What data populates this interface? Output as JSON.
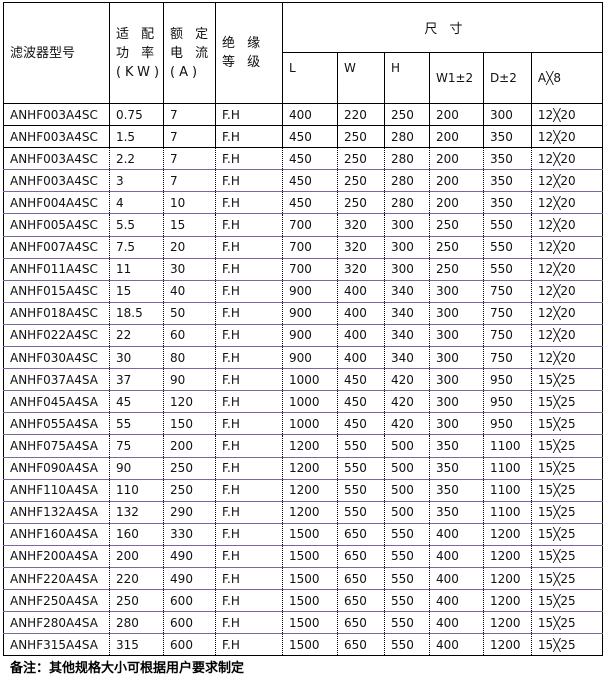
{
  "headers": {
    "model": "滤波器型号",
    "power": "适 配 功 率 (KW)",
    "current": "额 定 电 流 (A)",
    "insulation": "绝 缘 等 级",
    "dims": "尺 寸",
    "L": "L",
    "W": "W",
    "H": "H",
    "W1": "W1±2",
    "D": "D±2",
    "A": "A╳8"
  },
  "rows": [
    [
      "ANHF003A4SC",
      "0.75",
      "7",
      "F.H",
      "400",
      "220",
      "250",
      "200",
      "300",
      "12╳20"
    ],
    [
      "ANHF003A4SC",
      "1.5",
      "7",
      "F.H",
      "450",
      "250",
      "280",
      "200",
      "350",
      "12╳20"
    ],
    [
      "ANHF003A4SC",
      "2.2",
      "7",
      "F.H",
      "450",
      "250",
      "280",
      "200",
      "350",
      "12╳20"
    ],
    [
      "ANHF003A4SC",
      "3",
      "7",
      "F.H",
      "450",
      "250",
      "280",
      "200",
      "350",
      "12╳20"
    ],
    [
      "ANHF004A4SC",
      "4",
      "10",
      "F.H",
      "450",
      "250",
      "280",
      "200",
      "350",
      "12╳20"
    ],
    [
      "ANHF005A4SC",
      "5.5",
      "15",
      "F.H",
      "700",
      "320",
      "300",
      "250",
      "550",
      "12╳20"
    ],
    [
      "ANHF007A4SC",
      "7.5",
      "20",
      "F.H",
      "700",
      "320",
      "300",
      "250",
      "550",
      "12╳20"
    ],
    [
      "ANHF011A4SC",
      "11",
      "30",
      "F.H",
      "700",
      "320",
      "300",
      "250",
      "550",
      "12╳20"
    ],
    [
      "ANHF015A4SC",
      "15",
      "40",
      "F.H",
      "900",
      "400",
      "340",
      "300",
      "750",
      "12╳20"
    ],
    [
      "ANHF018A4SC",
      "18.5",
      "50",
      "F.H",
      "900",
      "400",
      "340",
      "300",
      "750",
      "12╳20"
    ],
    [
      "ANHF022A4SC",
      "22",
      "60",
      "F.H",
      "900",
      "400",
      "340",
      "300",
      "750",
      "12╳20"
    ],
    [
      "ANHF030A4SC",
      "30",
      "80",
      "F.H",
      "900",
      "400",
      "340",
      "300",
      "750",
      "12╳20"
    ],
    [
      "ANHF037A4SA",
      "37",
      "90",
      "F.H",
      "1000",
      "450",
      "420",
      "300",
      "950",
      "15╳25"
    ],
    [
      "ANHF045A4SA",
      "45",
      "120",
      "F.H",
      "1000",
      "450",
      "420",
      "300",
      "950",
      "15╳25"
    ],
    [
      "ANHF055A4SA",
      "55",
      "150",
      "F.H",
      "1000",
      "450",
      "420",
      "300",
      "950",
      "15╳25"
    ],
    [
      "ANHF075A4SA",
      "75",
      "200",
      "F.H",
      "1200",
      "550",
      "500",
      "350",
      "1100",
      "15╳25"
    ],
    [
      "ANHF090A4SA",
      "90",
      "250",
      "F.H",
      "1200",
      "550",
      "500",
      "350",
      "1100",
      "15╳25"
    ],
    [
      "ANHF110A4SA",
      "110",
      "250",
      "F.H",
      "1200",
      "550",
      "500",
      "350",
      "1100",
      "15╳25"
    ],
    [
      "ANHF132A4SA",
      "132",
      "290",
      "F.H",
      "1200",
      "550",
      "500",
      "350",
      "1100",
      "15╳25"
    ],
    [
      "ANHF160A4SA",
      "160",
      "330",
      "F.H",
      "1500",
      "650",
      "550",
      "400",
      "1200",
      "15╳25"
    ],
    [
      "ANHF200A4SA",
      "200",
      "490",
      "F.H",
      "1500",
      "650",
      "550",
      "400",
      "1200",
      "15╳25"
    ],
    [
      "ANHF220A4SA",
      "220",
      "490",
      "F.H",
      "1500",
      "650",
      "550",
      "400",
      "1200",
      "15╳25"
    ],
    [
      "ANHF250A4SA",
      "250",
      "600",
      "F.H",
      "1500",
      "650",
      "550",
      "400",
      "1200",
      "15╳25"
    ],
    [
      "ANHF280A4SA",
      "280",
      "600",
      "F.H",
      "1500",
      "650",
      "550",
      "400",
      "1200",
      "15╳25"
    ],
    [
      "ANHF315A4SA",
      "315",
      "600",
      "F.H",
      "1500",
      "650",
      "550",
      "400",
      "1200",
      "15╳25"
    ]
  ],
  "note": "备注：其他规格大小可根据用户要求制定"
}
